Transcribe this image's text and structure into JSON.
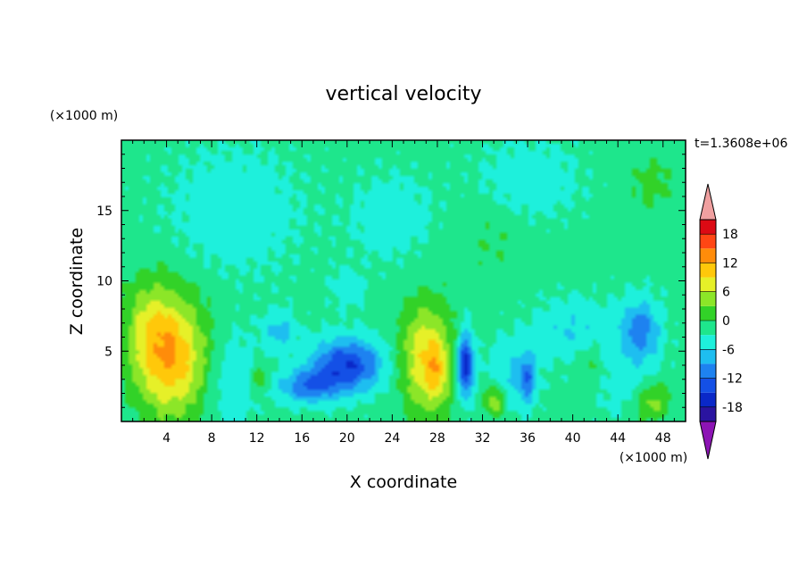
{
  "chart_data": {
    "type": "heatmap",
    "title": "vertical velocity",
    "xlabel": "X coordinate",
    "ylabel": "Z coordinate",
    "x_unit": "(×1000 m)",
    "y_unit": "(×1000 m)",
    "time_label": "t=1.3608e+06",
    "xlim": [
      0,
      50
    ],
    "ylim": [
      0,
      20
    ],
    "x_ticks": [
      4,
      8,
      12,
      16,
      20,
      24,
      28,
      32,
      36,
      40,
      44,
      48
    ],
    "x_tick_labels": [
      "4",
      "8",
      "12",
      "16",
      "20",
      "24",
      "28",
      "32",
      "36",
      "40",
      "44",
      "48"
    ],
    "y_ticks": [
      5,
      10,
      15
    ],
    "y_tick_labels": [
      "5",
      "10",
      "15"
    ],
    "colorbar": {
      "levels": [
        -21,
        -18,
        -15,
        -12,
        -9,
        -6,
        -3,
        0,
        3,
        6,
        9,
        12,
        15,
        18,
        21
      ],
      "tick_values": [
        18,
        12,
        6,
        0,
        -6,
        -12,
        -18
      ],
      "tick_labels": [
        "18",
        "12",
        "6",
        "0",
        "-6",
        "-12",
        "-18"
      ],
      "colors": [
        "#5a1ea0",
        "#2a14a0",
        "#0a28c8",
        "#1450e6",
        "#1e82f0",
        "#1ebef0",
        "#1ef0dc",
        "#1ee68c",
        "#32d228",
        "#8ce628",
        "#e6f028",
        "#ffc80a",
        "#ff8c0a",
        "#ff4614",
        "#dc0a14",
        "#f0a0a0"
      ],
      "under_color": "#8c14b4",
      "over_color": "#f0a0a0"
    },
    "field": {
      "background": 1,
      "blobs": [
        {
          "x": 4.5,
          "z": 4.5,
          "sx": 2.3,
          "sz": 3.0,
          "amp": 13
        },
        {
          "x": 2.5,
          "z": 7.0,
          "sx": 1.6,
          "sz": 2.5,
          "amp": 5
        },
        {
          "x": 27.0,
          "z": 4.5,
          "sx": 1.6,
          "sz": 2.8,
          "amp": 11
        },
        {
          "x": 28.0,
          "z": 3.5,
          "sx": 0.7,
          "sz": 1.5,
          "amp": 5
        },
        {
          "x": 33.0,
          "z": 1.5,
          "sx": 0.6,
          "sz": 0.8,
          "amp": 8
        },
        {
          "x": 47.0,
          "z": 1.5,
          "sx": 1.2,
          "sz": 1.0,
          "amp": 7
        },
        {
          "x": 12.3,
          "z": 3.0,
          "sx": 0.4,
          "sz": 0.6,
          "amp": 6
        },
        {
          "x": 20.0,
          "z": 4.0,
          "sx": 2.2,
          "sz": 1.3,
          "amp": -13
        },
        {
          "x": 16.5,
          "z": 2.5,
          "sx": 1.8,
          "sz": 0.8,
          "amp": -9
        },
        {
          "x": 30.5,
          "z": 4.0,
          "sx": 0.5,
          "sz": 1.6,
          "amp": -15
        },
        {
          "x": 36.0,
          "z": 3.0,
          "sx": 0.5,
          "sz": 1.2,
          "amp": -8
        },
        {
          "x": 46.0,
          "z": 6.5,
          "sx": 1.2,
          "sz": 1.5,
          "amp": -9
        },
        {
          "x": 34.5,
          "z": 3.5,
          "sx": 1.5,
          "sz": 1.5,
          "amp": -4
        },
        {
          "x": 45.0,
          "z": 2.5,
          "sx": 2.0,
          "sz": 1.5,
          "amp": -3
        },
        {
          "x": 14.0,
          "z": 6.5,
          "sx": 1.0,
          "sz": 1.0,
          "amp": -5
        },
        {
          "x": 20.0,
          "z": 9.5,
          "sx": 1.0,
          "sz": 1.0,
          "amp": -3
        },
        {
          "x": 40.0,
          "z": 6.5,
          "sx": 2.5,
          "sz": 1.5,
          "amp": -4
        },
        {
          "x": 9.5,
          "z": 3.0,
          "sx": 1.5,
          "sz": 2.5,
          "amp": -4
        },
        {
          "x": 10.0,
          "z": 15.0,
          "sx": 4.0,
          "sz": 3.0,
          "amp": -3
        },
        {
          "x": 24.0,
          "z": 14.5,
          "sx": 2.5,
          "sz": 2.0,
          "amp": -3
        },
        {
          "x": 36.0,
          "z": 17.0,
          "sx": 3.0,
          "sz": 2.0,
          "amp": -3
        },
        {
          "x": 33.0,
          "z": 13.0,
          "sx": 2.5,
          "sz": 2.0,
          "amp": 2
        },
        {
          "x": 47.0,
          "z": 17.0,
          "sx": 1.5,
          "sz": 1.5,
          "amp": 3
        },
        {
          "x": 41.5,
          "z": 4.0,
          "sx": 0.8,
          "sz": 1.2,
          "amp": 3
        }
      ]
    }
  }
}
